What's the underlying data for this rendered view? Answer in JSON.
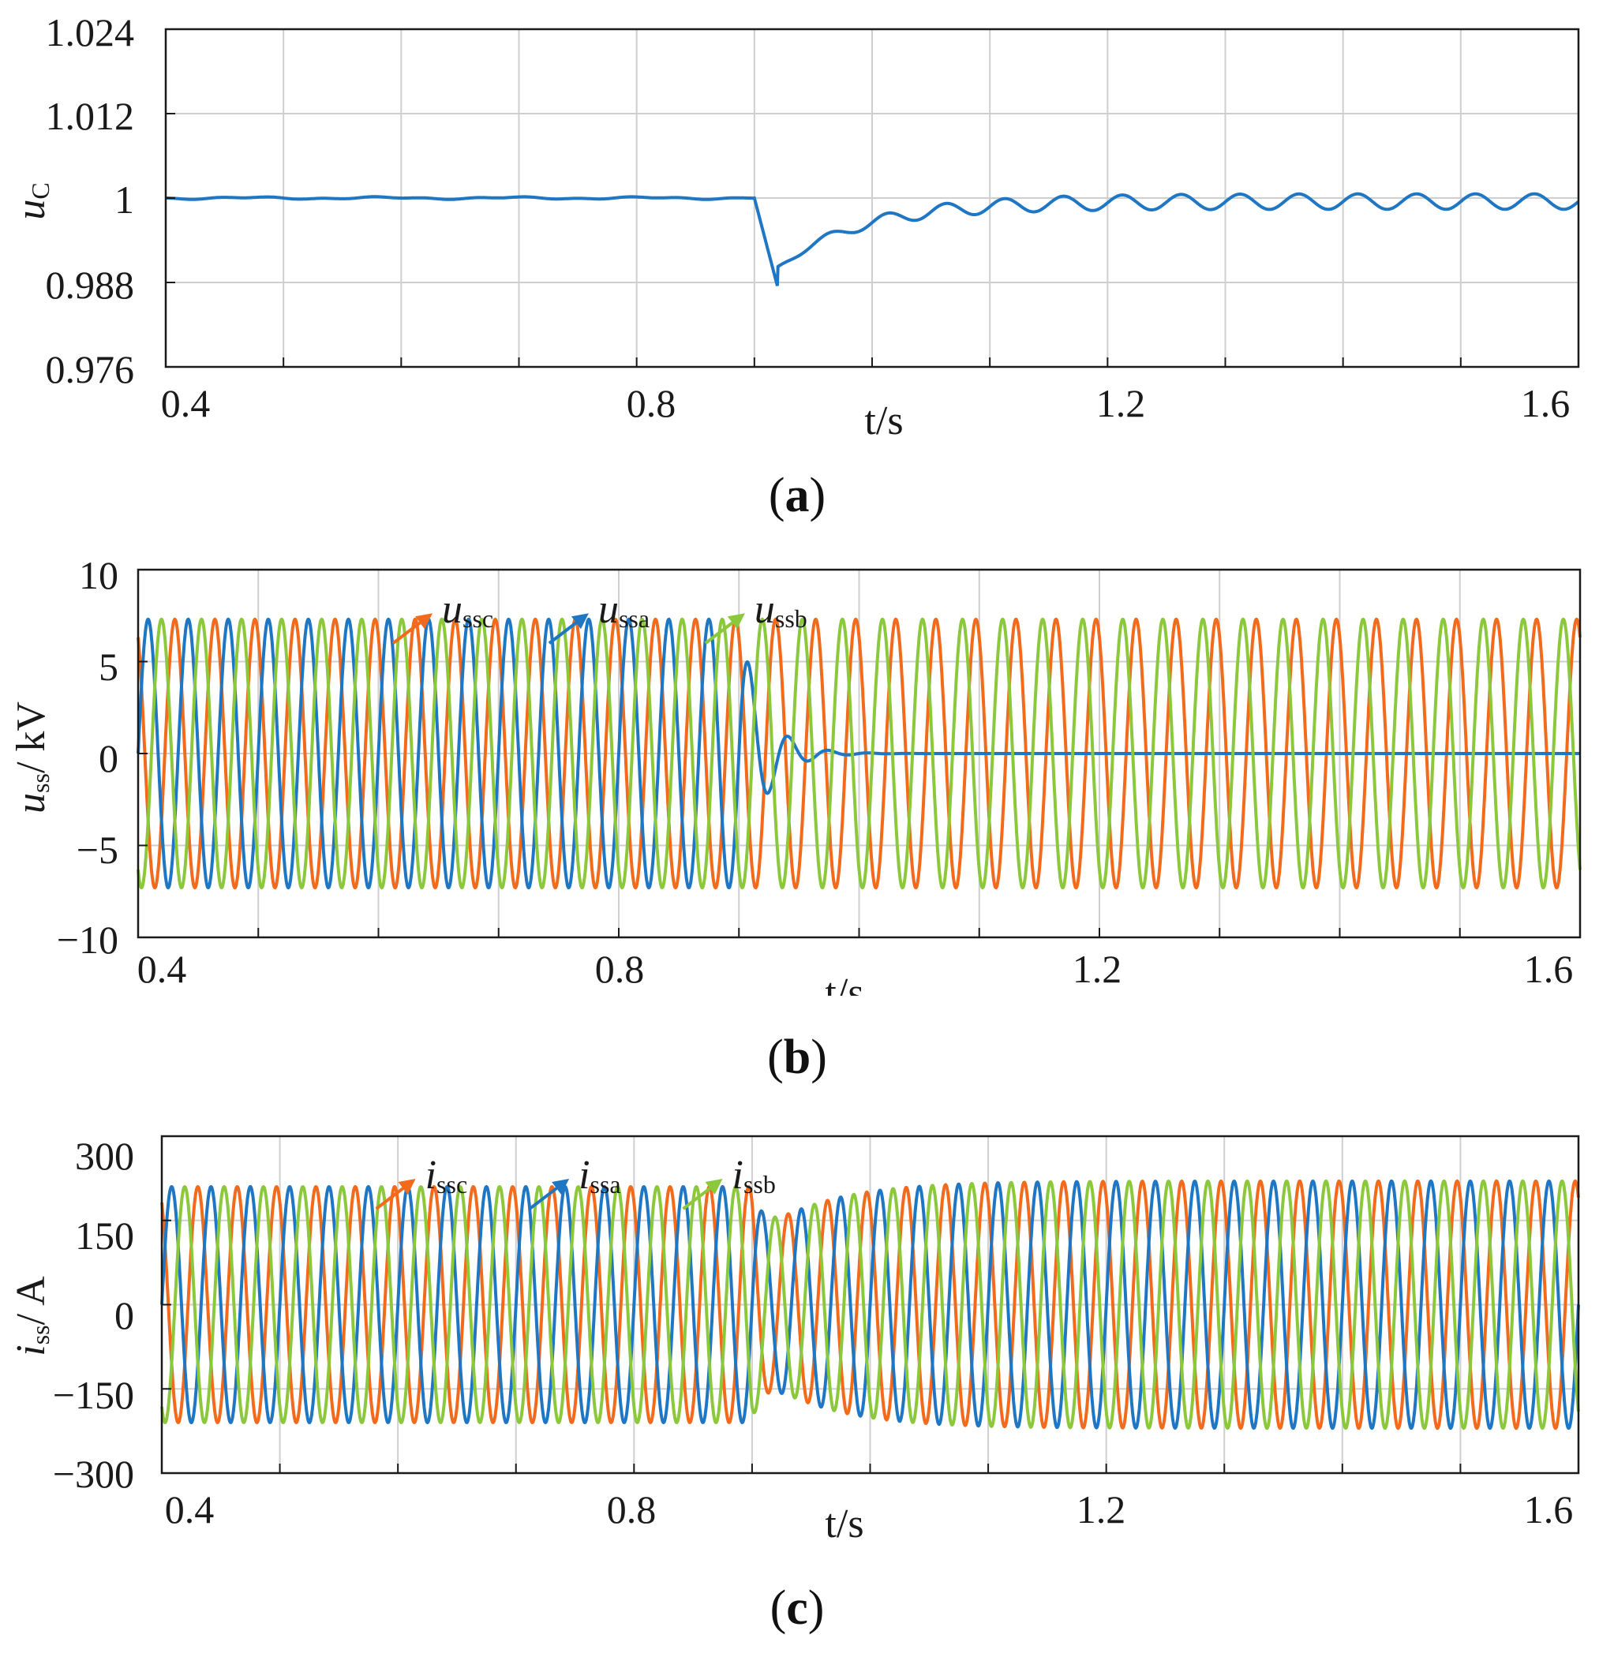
{
  "colors": {
    "phase_a": "#1f77c4",
    "phase_b": "#8cc83c",
    "phase_c": "#f26a1b",
    "grid": "#cfcfcf",
    "axis": "#1a1a1a"
  },
  "chart_data": [
    {
      "id": "a",
      "type": "line",
      "panel_label": "a",
      "xlabel": "t/s",
      "ylabel": {
        "main": "u",
        "sub": "C"
      },
      "xlim": [
        0.4,
        1.6
      ],
      "ylim": [
        0.976,
        1.024
      ],
      "xticks": [
        0.4,
        0.8,
        1.2,
        1.6
      ],
      "xtick_labels": [
        "0.4",
        "0.8",
        "1.2",
        "1.6"
      ],
      "yticks": [
        0.976,
        0.988,
        1,
        1.012,
        1.024
      ],
      "ytick_labels": [
        "0.976",
        "0.988",
        "1",
        "1.012",
        "1.024"
      ],
      "grid": true,
      "series": [
        {
          "name": "uC",
          "color_key": "phase_a",
          "description": "Capacitor voltage (p.u.) flat at 1.0 until fault at 0.9 s, dips to ~0.987 near 0.92 s, recovers with ~20 Hz oscillation of about ±0.001 around ~0.9995",
          "baseline": 1.0,
          "event_time": 0.9,
          "min_value": 0.9872,
          "min_time": 0.92,
          "settled_value": 0.9995,
          "settled_ripple": 0.001
        }
      ],
      "annotations": []
    },
    {
      "id": "b",
      "type": "line",
      "panel_label": "b",
      "xlabel": "t/s",
      "ylabel": {
        "main": "u",
        "sub": "ss",
        "unit": "/ kV"
      },
      "xlim": [
        0.4,
        1.6
      ],
      "ylim": [
        -10,
        10
      ],
      "xticks": [
        0.4,
        0.8,
        1.2,
        1.6
      ],
      "xtick_labels": [
        "0.4",
        "0.8",
        "1.2",
        "1.6"
      ],
      "yticks": [
        -10,
        -5,
        0,
        5,
        10
      ],
      "ytick_labels": [
        "−10",
        "−5",
        "0",
        "5",
        "10"
      ],
      "grid": true,
      "series": [
        {
          "name": "ussa",
          "color_key": "phase_a",
          "amplitude_pre": 7.3,
          "amplitude_post": 0.0,
          "phase_deg": 0,
          "frequency_hz": 30
        },
        {
          "name": "ussb",
          "color_key": "phase_b",
          "amplitude_pre": 7.3,
          "amplitude_post": 7.3,
          "phase_deg": -120,
          "frequency_hz": 30
        },
        {
          "name": "ussc",
          "color_key": "phase_c",
          "amplitude_pre": 7.3,
          "amplitude_post": 7.3,
          "phase_deg": 120,
          "frequency_hz": 30
        }
      ],
      "event_time": 0.9,
      "annotations": [
        {
          "main": "u",
          "sub": "ssc",
          "color_key": "phase_c",
          "x": 0.645,
          "y": 7.2
        },
        {
          "main": "u",
          "sub": "ssa",
          "color_key": "phase_a",
          "x": 0.775,
          "y": 7.2
        },
        {
          "main": "u",
          "sub": "ssb",
          "color_key": "phase_b",
          "x": 0.905,
          "y": 7.2
        }
      ]
    },
    {
      "id": "c",
      "type": "line",
      "panel_label": "c",
      "xlabel": "t/s",
      "ylabel": {
        "main": "i",
        "sub": "ss",
        "unit": "/ A"
      },
      "xlim": [
        0.4,
        1.6
      ],
      "ylim": [
        -300,
        300
      ],
      "xticks": [
        0.4,
        0.8,
        1.2,
        1.6
      ],
      "xtick_labels": [
        "0.4",
        "0.8",
        "1.2",
        "1.6"
      ],
      "yticks": [
        -300,
        -150,
        0,
        150,
        300
      ],
      "ytick_labels": [
        "−300",
        "−150",
        "0",
        "150",
        "300"
      ],
      "grid": true,
      "series": [
        {
          "name": "issa",
          "color_key": "phase_a",
          "amplitude_pre": 210,
          "amplitude_post": 220,
          "phase_deg": 0,
          "frequency_hz": 30
        },
        {
          "name": "issb",
          "color_key": "phase_b",
          "amplitude_pre": 210,
          "amplitude_post": 220,
          "phase_deg": -120,
          "frequency_hz": 30
        },
        {
          "name": "issc",
          "color_key": "phase_c",
          "amplitude_pre": 210,
          "amplitude_post": 220,
          "phase_deg": 120,
          "frequency_hz": 30
        }
      ],
      "event_time": 0.9,
      "annotations": [
        {
          "main": "i",
          "sub": "ssc",
          "color_key": "phase_c",
          "x": 0.615,
          "y": 210
        },
        {
          "main": "i",
          "sub": "ssa",
          "color_key": "phase_a",
          "x": 0.745,
          "y": 210
        },
        {
          "main": "i",
          "sub": "ssb",
          "color_key": "phase_b",
          "x": 0.875,
          "y": 210
        }
      ]
    }
  ]
}
